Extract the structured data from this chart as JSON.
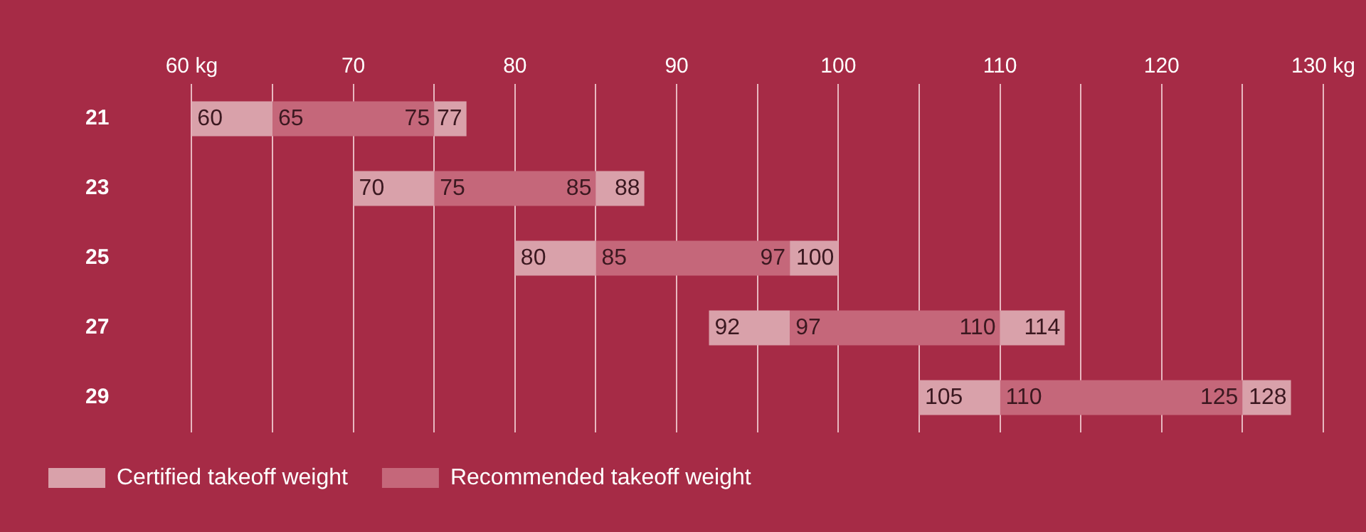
{
  "chart_data": {
    "type": "bar",
    "orientation": "horizontal",
    "categories": [
      "21",
      "23",
      "25",
      "27",
      "29"
    ],
    "series": [
      {
        "name": "Certified takeoff weight",
        "color": "#d9a1aa",
        "base": [
          60,
          70,
          80,
          92,
          105
        ],
        "values": [
          5,
          5,
          5,
          5,
          5
        ]
      },
      {
        "name": "Recommended takeoff weight",
        "color": "#c5677a",
        "base": [
          65,
          75,
          85,
          97,
          110
        ],
        "values": [
          10,
          10,
          12,
          13,
          15
        ]
      },
      {
        "color": "#d9a1aa",
        "base": [
          75,
          85,
          97,
          110,
          125
        ],
        "values": [
          2,
          3,
          3,
          4,
          3
        ]
      }
    ],
    "annotations": [
      {
        "text": "60",
        "x": 60,
        "y": "21"
      },
      {
        "text": "65",
        "x": 65,
        "y": "21"
      },
      {
        "text": "75",
        "x": 75,
        "y": "21"
      },
      {
        "text": "77",
        "x": 77,
        "y": "21"
      },
      {
        "text": "70",
        "x": 70,
        "y": "23"
      },
      {
        "text": "75",
        "x": 75,
        "y": "23"
      },
      {
        "text": "85",
        "x": 85,
        "y": "23"
      },
      {
        "text": "88",
        "x": 88,
        "y": "23"
      },
      {
        "text": "80",
        "x": 80,
        "y": "25"
      },
      {
        "text": "85",
        "x": 85,
        "y": "25"
      },
      {
        "text": "97",
        "x": 97,
        "y": "25"
      },
      {
        "text": "100",
        "x": 100,
        "y": "25"
      },
      {
        "text": "92",
        "x": 92,
        "y": "27"
      },
      {
        "text": "97",
        "x": 97,
        "y": "27"
      },
      {
        "text": "110",
        "x": 110,
        "y": "27"
      },
      {
        "text": "114",
        "x": 114,
        "y": "27"
      },
      {
        "text": "105",
        "x": 105,
        "y": "29"
      },
      {
        "text": "110",
        "x": 110,
        "y": "29"
      },
      {
        "text": "125",
        "x": 125,
        "y": "29"
      },
      {
        "text": "128",
        "x": 128,
        "y": "29"
      }
    ],
    "xlim": [
      60,
      130
    ],
    "xticks": [
      {
        "value": 60,
        "label": "60 kg"
      },
      {
        "value": 65,
        "label": null
      },
      70,
      {
        "value": 75,
        "label": null
      },
      80,
      {
        "value": 85,
        "label": null
      },
      90,
      {
        "value": 95,
        "label": null
      },
      100,
      {
        "value": 105,
        "label": null
      },
      110,
      {
        "value": 115,
        "label": null
      },
      120,
      {
        "value": 125,
        "label": null
      },
      {
        "value": 130,
        "label": "130 kg"
      }
    ],
    "grid": "x",
    "legend": "bottom left"
  }
}
